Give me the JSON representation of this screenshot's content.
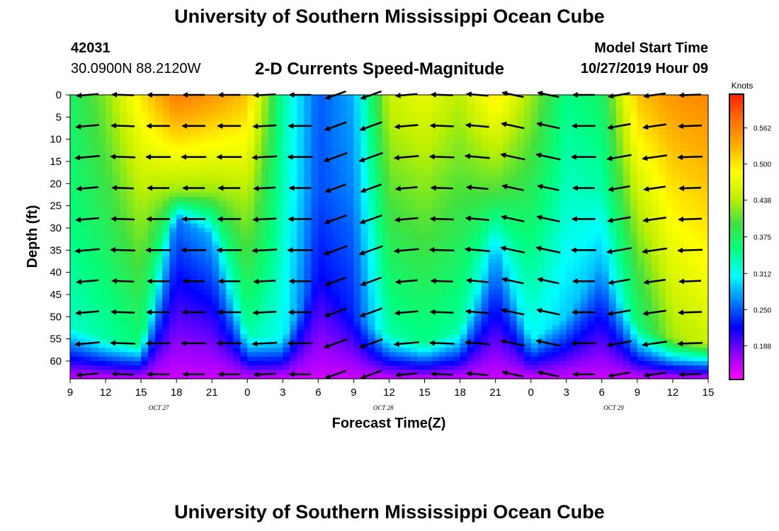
{
  "header": {
    "site_title": "University of Southern Mississippi Ocean Cube",
    "station_id": "42031",
    "station_coords": "30.0900N 88.2120W",
    "model_start_label": "Model Start Time",
    "model_start_value": "10/27/2019 Hour 09"
  },
  "footer": {
    "site_title": "University of Southern Mississippi Ocean Cube"
  },
  "chart_data": {
    "type": "heatmap",
    "title": "2-D Currents Speed-Magnitude",
    "xlabel": "Forecast Time(Z)",
    "ylabel": "Depth (ft)",
    "colorbar_label": "Knots",
    "x_ticks": [
      "9",
      "12",
      "15",
      "18",
      "21",
      "0",
      "3",
      "6",
      "9",
      "12",
      "15",
      "18",
      "21",
      "0",
      "3",
      "6",
      "9",
      "12",
      "15"
    ],
    "x_tick_hours": [
      0,
      3,
      6,
      9,
      12,
      15,
      18,
      21,
      24,
      27,
      30,
      33,
      36,
      39,
      42,
      45,
      48,
      51,
      54
    ],
    "date_labels": [
      {
        "label": "OCT 27",
        "hour": 7.5
      },
      {
        "label": "OCT 28",
        "hour": 26.5
      },
      {
        "label": "OCT 29",
        "hour": 46
      }
    ],
    "y_ticks": [
      "0",
      "5",
      "10",
      "15",
      "20",
      "25",
      "30",
      "35",
      "40",
      "45",
      "50",
      "55",
      "60"
    ],
    "y_tick_values": [
      0,
      5,
      10,
      15,
      20,
      25,
      30,
      35,
      40,
      45,
      50,
      55,
      60
    ],
    "xlim_hours": [
      0,
      54
    ],
    "ylim_depth_ft": [
      0,
      64
    ],
    "y_inverted": true,
    "colorbar_ticks": [
      "0.562",
      "0.500",
      "0.438",
      "0.375",
      "0.312",
      "0.250",
      "0.188"
    ],
    "colorbar_tick_values": [
      0.562,
      0.5,
      0.438,
      0.375,
      0.312,
      0.25,
      0.188
    ],
    "colorbar_range": [
      0.13,
      0.62
    ],
    "colorbar_colors": [
      "#ff00ff",
      "#9000ff",
      "#0000ff",
      "#0080ff",
      "#00ffff",
      "#00ff80",
      "#40e040",
      "#c0f000",
      "#ffff00",
      "#ffb000",
      "#ff7000",
      "#ff2000"
    ],
    "speed_profile_knots": [
      {
        "hour": 0,
        "surface": 0.37,
        "mid": 0.35,
        "deep_start": 52
      },
      {
        "hour": 3,
        "surface": 0.42,
        "mid": 0.36,
        "deep_start": 55
      },
      {
        "hour": 6,
        "surface": 0.5,
        "mid": 0.38,
        "deep_start": 56
      },
      {
        "hour": 9,
        "surface": 0.57,
        "mid": 0.28,
        "deep_start": 28
      },
      {
        "hour": 12,
        "surface": 0.55,
        "mid": 0.3,
        "deep_start": 32
      },
      {
        "hour": 15,
        "surface": 0.52,
        "mid": 0.36,
        "deep_start": 54
      },
      {
        "hour": 18,
        "surface": 0.34,
        "mid": 0.33,
        "deep_start": 55
      },
      {
        "hour": 21,
        "surface": 0.25,
        "mid": 0.24,
        "deep_start": 40
      },
      {
        "hour": 24,
        "surface": 0.28,
        "mid": 0.25,
        "deep_start": 50
      },
      {
        "hour": 27,
        "surface": 0.45,
        "mid": 0.36,
        "deep_start": 54
      },
      {
        "hour": 30,
        "surface": 0.47,
        "mid": 0.37,
        "deep_start": 56
      },
      {
        "hour": 33,
        "surface": 0.44,
        "mid": 0.36,
        "deep_start": 53
      },
      {
        "hour": 36,
        "surface": 0.5,
        "mid": 0.3,
        "deep_start": 35
      },
      {
        "hour": 39,
        "surface": 0.43,
        "mid": 0.33,
        "deep_start": 55
      },
      {
        "hour": 42,
        "surface": 0.35,
        "mid": 0.31,
        "deep_start": 50
      },
      {
        "hour": 45,
        "surface": 0.37,
        "mid": 0.3,
        "deep_start": 38
      },
      {
        "hour": 48,
        "surface": 0.52,
        "mid": 0.38,
        "deep_start": 52
      },
      {
        "hour": 51,
        "surface": 0.55,
        "mid": 0.45,
        "deep_start": 55
      },
      {
        "hour": 54,
        "surface": 0.56,
        "mid": 0.47,
        "deep_start": 56
      }
    ],
    "vector_rows_depth_ft": [
      0,
      7,
      14,
      21,
      28,
      35,
      42,
      49,
      56,
      63
    ],
    "vector_direction_deg": [
      {
        "hour": 1.5,
        "angle": 185
      },
      {
        "hour": 4.5,
        "angle": 178
      },
      {
        "hour": 7.5,
        "angle": 180
      },
      {
        "hour": 10.5,
        "angle": 180
      },
      {
        "hour": 13.5,
        "angle": 180
      },
      {
        "hour": 16.5,
        "angle": 183
      },
      {
        "hour": 19.5,
        "angle": 180
      },
      {
        "hour": 22.5,
        "angle": 200
      },
      {
        "hour": 25.5,
        "angle": 200
      },
      {
        "hour": 28.5,
        "angle": 185
      },
      {
        "hour": 31.5,
        "angle": 178
      },
      {
        "hour": 34.5,
        "angle": 175
      },
      {
        "hour": 37.5,
        "angle": 168
      },
      {
        "hour": 40.5,
        "angle": 168
      },
      {
        "hour": 43.5,
        "angle": 180
      },
      {
        "hour": 46.5,
        "angle": 190
      },
      {
        "hour": 49.5,
        "angle": 188
      },
      {
        "hour": 52.5,
        "angle": 182
      }
    ]
  }
}
